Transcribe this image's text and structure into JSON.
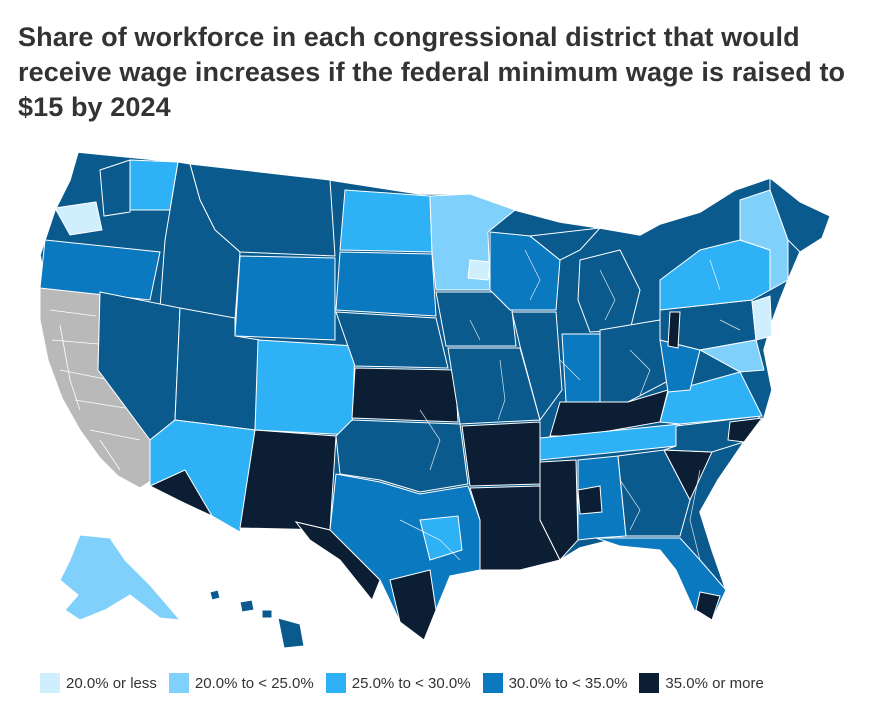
{
  "title": "Share of workforce in each congressional district that would receive wage increases if the federal minimum wage is raised to $15 by 2024",
  "legend": [
    {
      "label": "20.0% or less",
      "color": "#cfeefe"
    },
    {
      "label": "20.0% to < 25.0%",
      "color": "#7fd0fb"
    },
    {
      "label": "25.0% to < 30.0%",
      "color": "#2fb1f5"
    },
    {
      "label": "30.0% to < 35.0%",
      "color": "#0b79c0"
    },
    {
      "label": "35.0% or more",
      "color": "#0b1e33"
    }
  ],
  "colors": {
    "no_data": "#b9b9b9",
    "l0": "#cfeefe",
    "l1": "#7fd0fb",
    "l2": "#2fb1f5",
    "l3": "#0b79c0",
    "l3b": "#0a5a8e",
    "l4": "#0b1e33"
  }
}
